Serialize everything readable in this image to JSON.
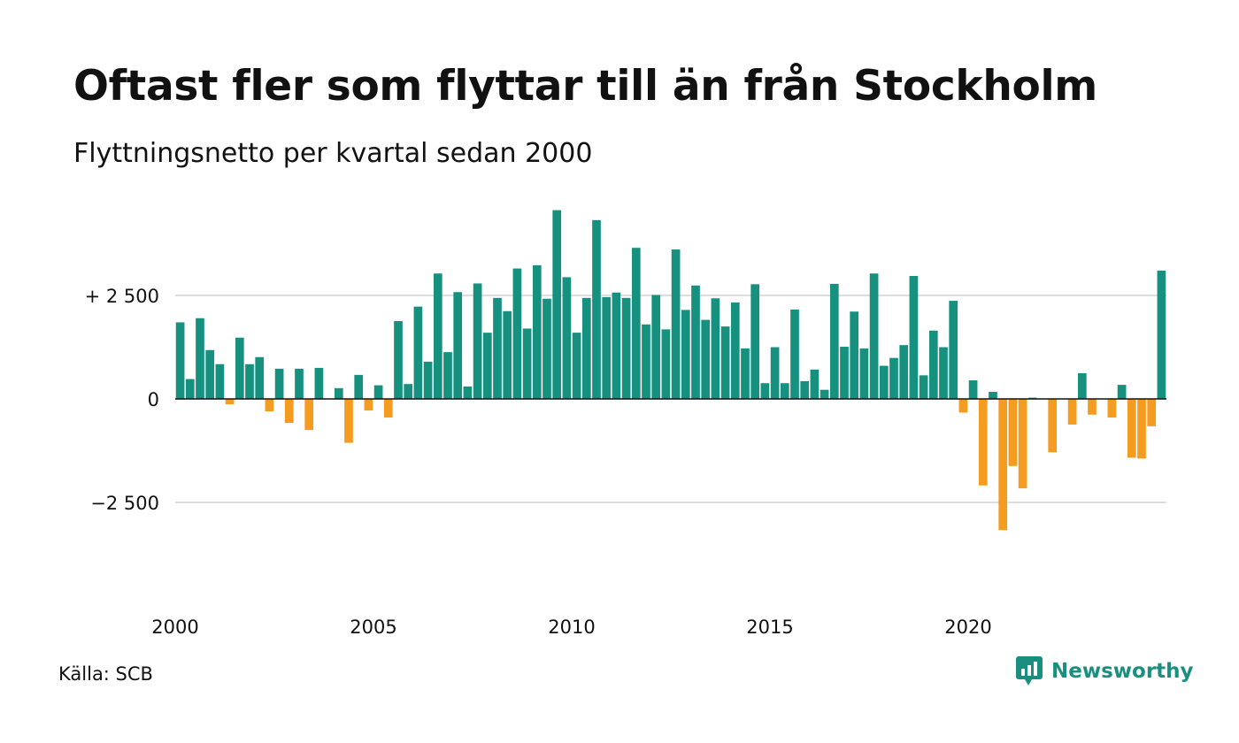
{
  "header": {
    "title": "Oftast fler som flyttar till än från Stockholm",
    "subtitle": "Flyttningsnetto per kvartal sedan 2000"
  },
  "footer": {
    "source": "Källa: SCB",
    "brand": "Newsworthy",
    "brand_icon": "newsworthy-logo-icon"
  },
  "colors": {
    "positive": "#16917f",
    "negative": "#f39c1f",
    "grid": "#dddddd",
    "zero_line": "#111111",
    "text": "#111111",
    "brand": "#1a8f80"
  },
  "chart_data": {
    "type": "bar",
    "title": "Oftast fler som flyttar till än från Stockholm",
    "subtitle": "Flyttningsnetto per kvartal sedan 2000",
    "xlabel": "",
    "ylabel": "",
    "x_ticks": [
      "2000",
      "2005",
      "2010",
      "2015",
      "2020"
    ],
    "y_ticks": [
      {
        "value": 2500,
        "label": "+ 2 500"
      },
      {
        "value": 0,
        "label": "0"
      },
      {
        "value": -2500,
        "label": "−2 500"
      }
    ],
    "ylim": [
      -5200,
      5000
    ],
    "grid": "horizontal",
    "start": "2000 Q1",
    "frequency": "quarterly",
    "series": [
      {
        "values": [
          1850,
          480,
          1950,
          1180,
          840,
          -130,
          1480,
          840,
          1010,
          -300,
          730,
          -580,
          730,
          -750,
          750,
          0,
          260,
          -1060,
          580,
          -280,
          330,
          -450,
          1880,
          360,
          2230,
          900,
          3030,
          1130,
          2580,
          300,
          2790,
          1600,
          2440,
          2120,
          3150,
          1700,
          3230,
          2420,
          4560,
          2940,
          1600,
          2440,
          4320,
          2460,
          2570,
          2440,
          3650,
          1800,
          2510,
          1680,
          3610,
          2150,
          2740,
          1910,
          2430,
          1750,
          2330,
          1220,
          2770,
          380,
          1250,
          380,
          2160,
          430,
          710,
          220,
          2780,
          1260,
          2110,
          1220,
          3030,
          800,
          990,
          1300,
          2970,
          570,
          1650,
          1250,
          2370,
          -330,
          450,
          -2090,
          170,
          -3170,
          -1620,
          -2160,
          30,
          0,
          -1290,
          0,
          -620,
          620,
          -380,
          0,
          -450,
          340,
          -1420,
          -1440,
          -660,
          3100
        ]
      }
    ]
  }
}
